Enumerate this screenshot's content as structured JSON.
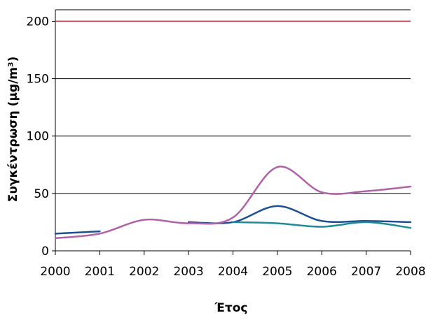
{
  "chart_data": {
    "type": "line",
    "title": "",
    "xlabel": "Έτος",
    "ylabel": "Συγκέντρωση (μg/m³)",
    "xlim": [
      2000,
      2008
    ],
    "ylim": [
      0,
      210
    ],
    "x_ticks": [
      "2000",
      "2001",
      "2002",
      "2003",
      "2004",
      "2005",
      "2006",
      "2007",
      "2008"
    ],
    "y_ticks": [
      0,
      50,
      100,
      150,
      200
    ],
    "grid": "horizontal",
    "legend": "none",
    "reference_line": {
      "value": 200,
      "color": "#c0394e"
    },
    "series": [
      {
        "color": "#1f4f8f",
        "points": [
          [
            2000,
            15
          ],
          [
            2001,
            17
          ]
        ]
      },
      {
        "color": "#1f4f8f",
        "points": [
          [
            2003,
            25
          ],
          [
            2004,
            25
          ],
          [
            2005,
            39
          ],
          [
            2006,
            26
          ],
          [
            2007,
            26
          ],
          [
            2008,
            25
          ]
        ]
      },
      {
        "color": "#b062a8",
        "points": [
          [
            2000,
            11
          ],
          [
            2001,
            15
          ],
          [
            2002,
            27
          ],
          [
            2003,
            24
          ],
          [
            2004,
            29
          ],
          [
            2005,
            73
          ],
          [
            2006,
            51
          ],
          [
            2007,
            52
          ],
          [
            2008,
            56
          ]
        ]
      },
      {
        "color": "#1e8a9a",
        "points": [
          [
            2004,
            25
          ],
          [
            2005,
            24
          ],
          [
            2006,
            21
          ],
          [
            2007,
            25
          ],
          [
            2008,
            20
          ]
        ]
      }
    ]
  }
}
